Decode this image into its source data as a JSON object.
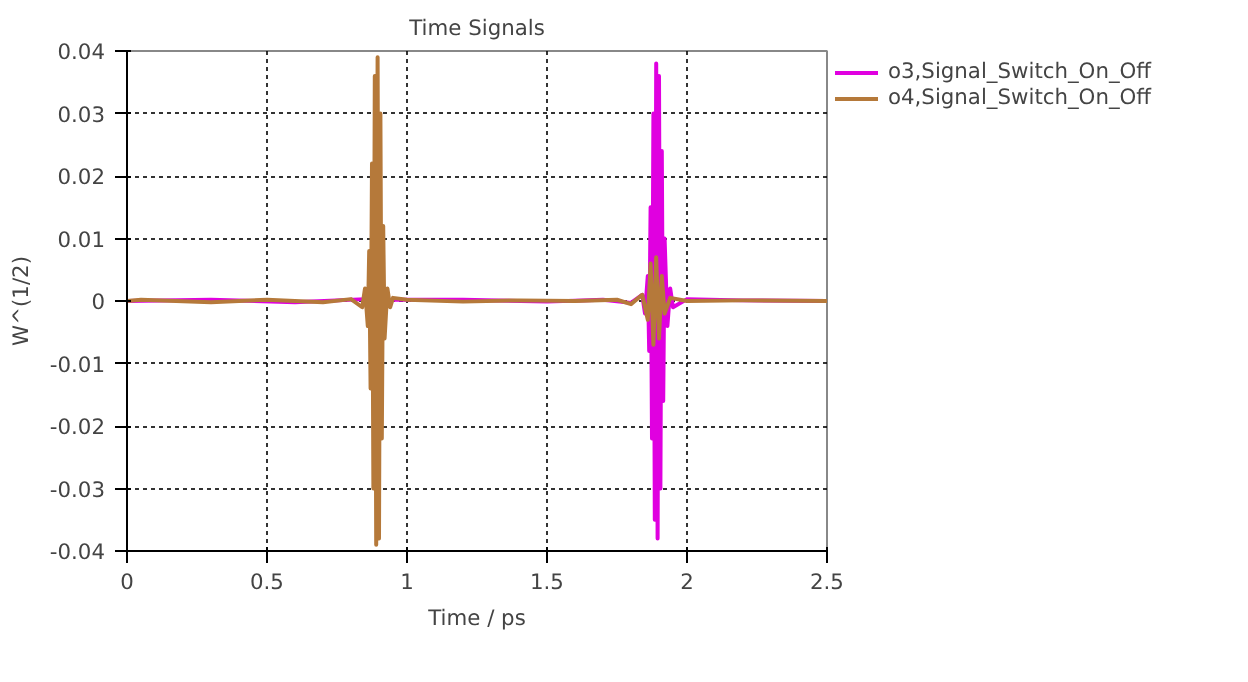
{
  "chart_data": {
    "type": "line",
    "title": "Time Signals",
    "xlabel": "Time / ps",
    "ylabel": "W^(1/2)",
    "xlim": [
      0,
      2.5
    ],
    "xticks": [
      0,
      0.5,
      1,
      1.5,
      2,
      2.5
    ],
    "ylim": [
      -0.04,
      0.04
    ],
    "yticks": [
      -0.04,
      -0.03,
      -0.02,
      -0.01,
      0,
      0.01,
      0.02,
      0.03,
      0.04
    ],
    "grid": true,
    "legend": "top right",
    "line_style": "solid",
    "marker": "none",
    "series": [
      {
        "name": "o3,Signal_Switch_On_Off",
        "color": "#e000e0",
        "x": [
          0,
          0.3,
          0.6,
          0.85,
          0.9,
          0.95,
          1.2,
          1.5,
          1.7,
          1.8,
          1.84,
          1.85,
          1.86,
          1.865,
          1.87,
          1.875,
          1.88,
          1.885,
          1.89,
          1.895,
          1.9,
          1.905,
          1.91,
          1.915,
          1.92,
          1.93,
          1.94,
          1.95,
          2.0,
          2.2,
          2.5
        ],
        "values": [
          0,
          0.0002,
          -0.0002,
          0.0003,
          null,
          0.0002,
          0.0002,
          -0.0001,
          0.0002,
          -0.0003,
          0.001,
          -0.002,
          0.004,
          -0.008,
          0.015,
          -0.022,
          0.03,
          -0.035,
          0.038,
          -0.038,
          0.036,
          -0.03,
          0.024,
          -0.016,
          0.01,
          -0.004,
          0.002,
          -0.001,
          0.0003,
          0.0001,
          0
        ]
      },
      {
        "name": "o4,Signal_Switch_On_Off",
        "color": "#b5793a",
        "x": [
          0,
          0.05,
          0.3,
          0.5,
          0.7,
          0.8,
          0.84,
          0.85,
          0.86,
          0.865,
          0.87,
          0.875,
          0.88,
          0.885,
          0.89,
          0.895,
          0.9,
          0.905,
          0.91,
          0.915,
          0.92,
          0.93,
          0.94,
          0.95,
          1.0,
          1.2,
          1.4,
          1.6,
          1.75,
          1.8,
          1.84,
          1.86,
          1.87,
          1.88,
          1.89,
          1.9,
          1.91,
          1.92,
          1.94,
          2.0,
          2.2,
          2.5
        ],
        "values": [
          0,
          0.0002,
          -0.0002,
          0.0002,
          -0.0002,
          0.0003,
          -0.001,
          0.002,
          -0.004,
          0.008,
          -0.014,
          0.022,
          -0.03,
          0.036,
          -0.039,
          0.039,
          -0.038,
          0.03,
          -0.022,
          0.012,
          -0.006,
          0.002,
          -0.001,
          0.0005,
          0.0002,
          -0.0001,
          0.0001,
          0,
          0.0002,
          -0.0005,
          0.001,
          -0.003,
          0.006,
          -0.007,
          0.007,
          -0.006,
          0.004,
          -0.002,
          0.0005,
          0,
          0.0001,
          0
        ]
      }
    ]
  }
}
